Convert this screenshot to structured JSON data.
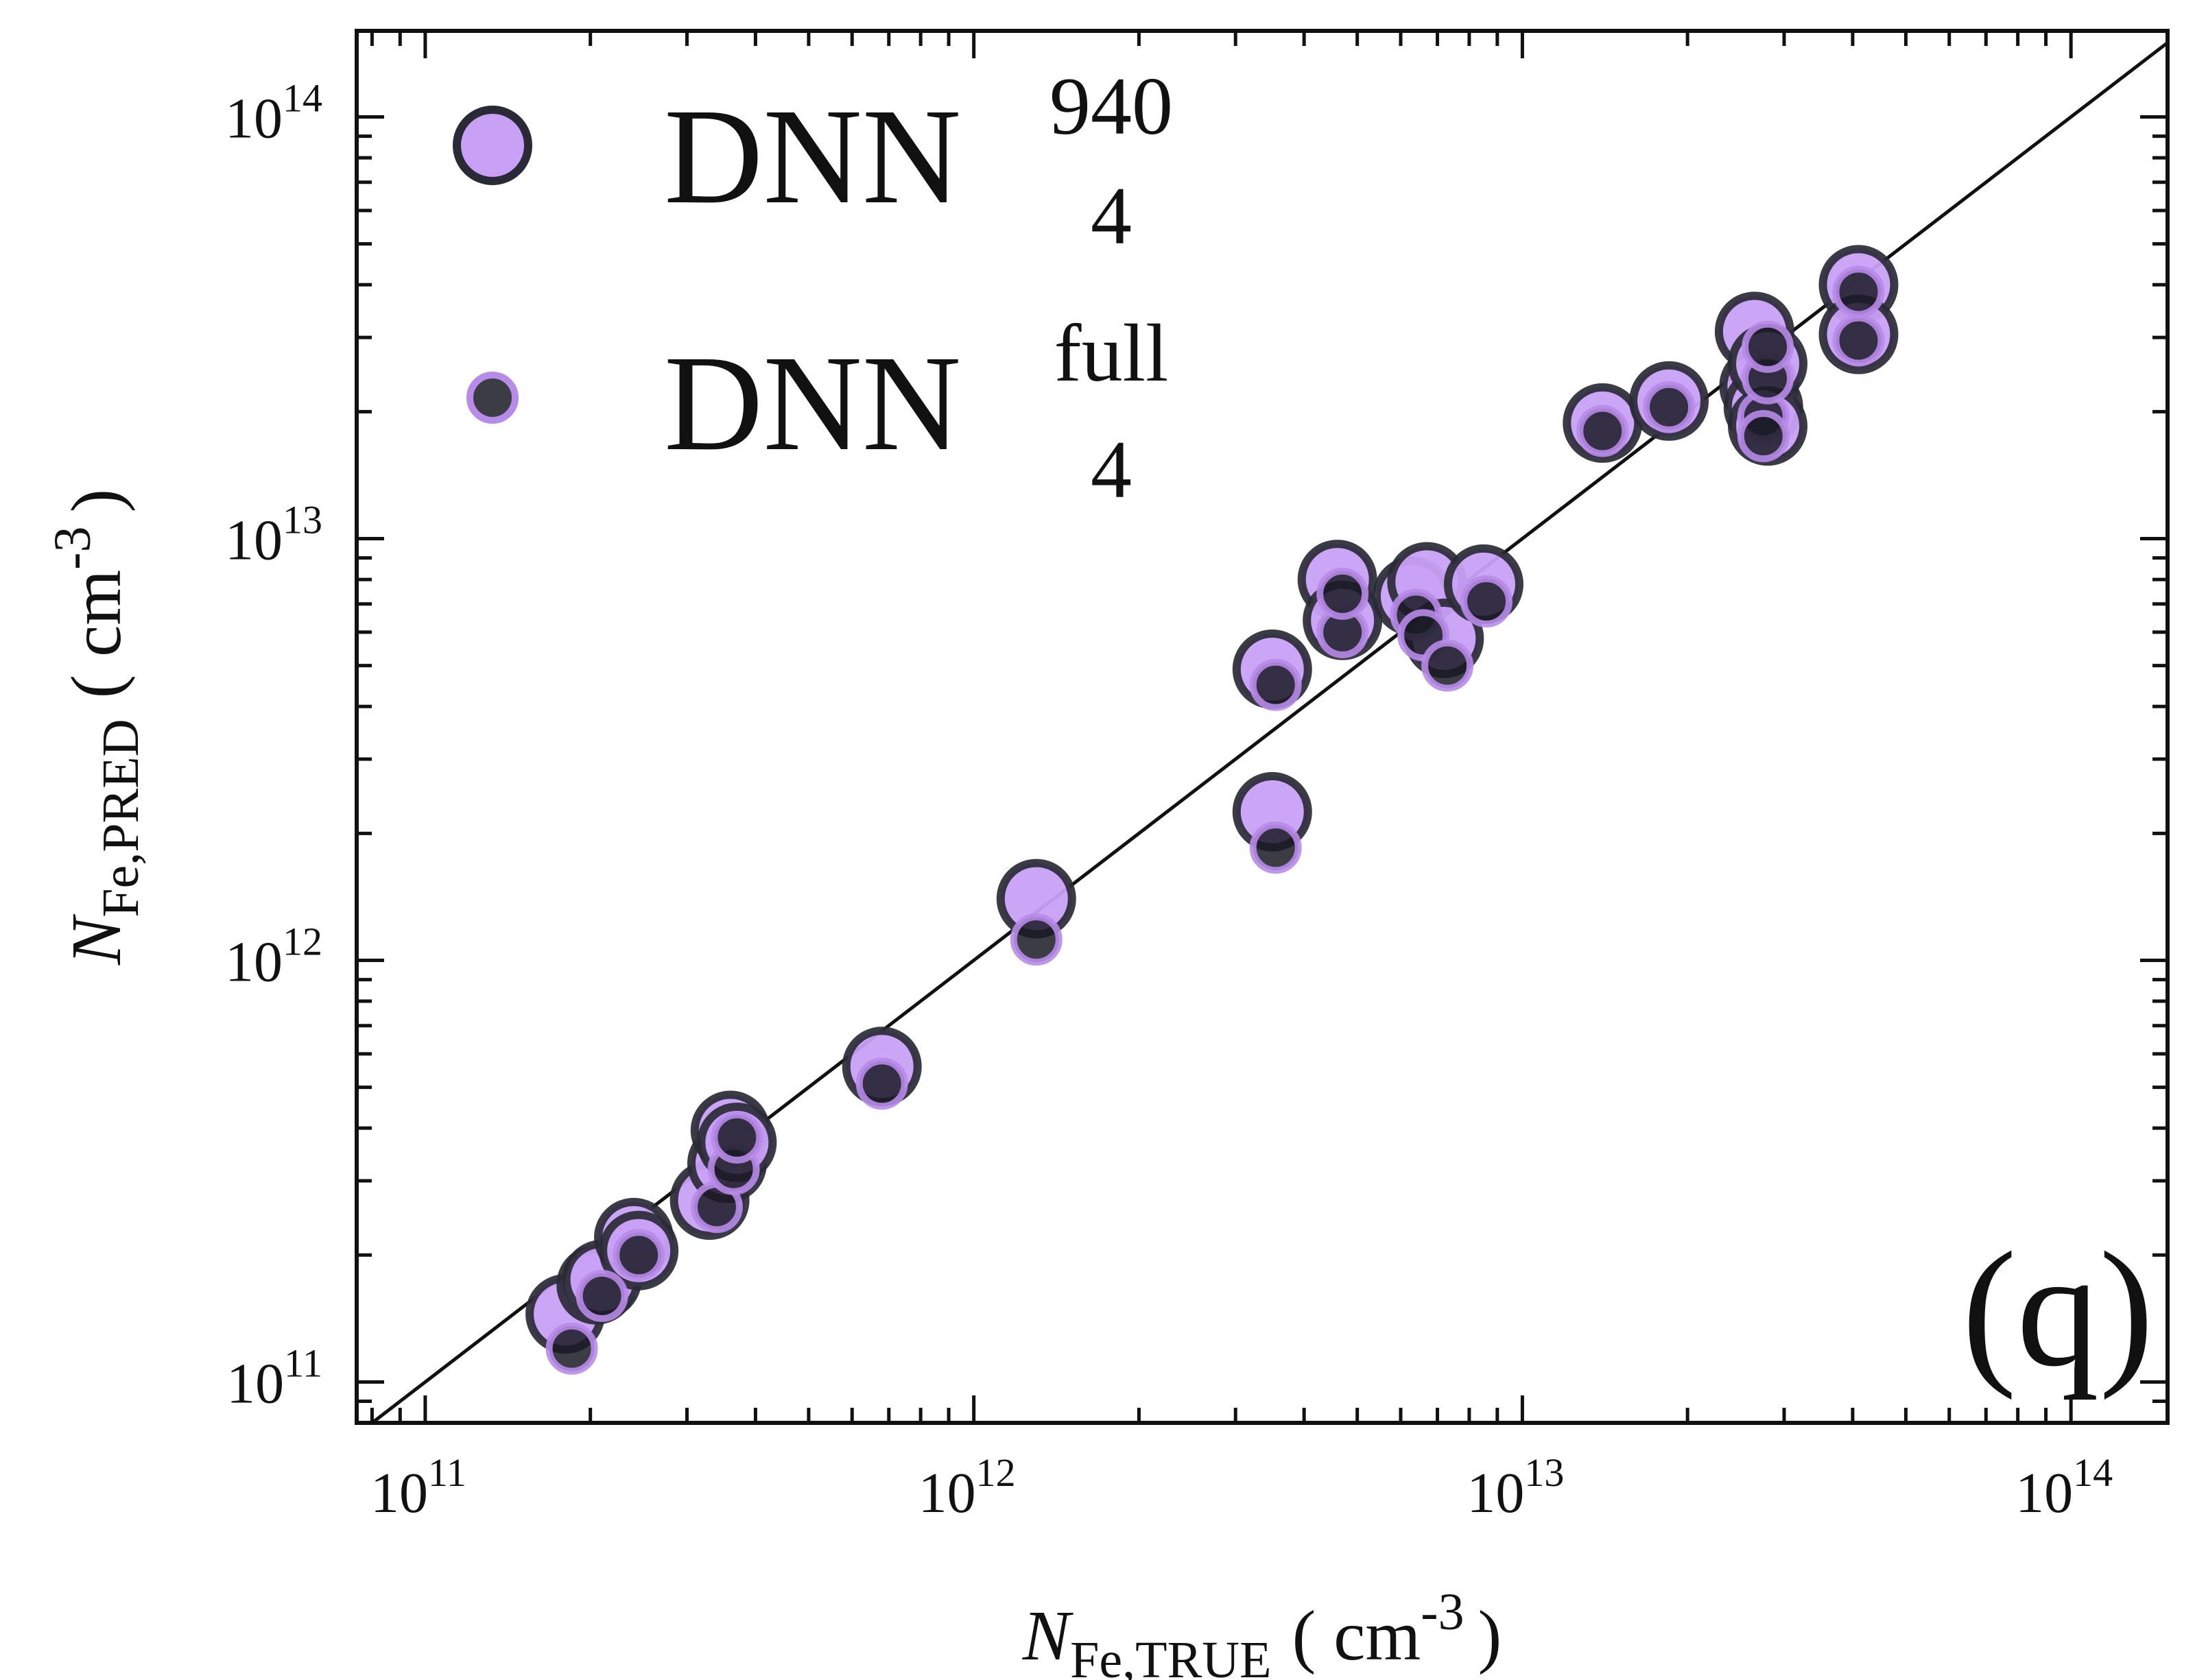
{
  "chart_data": {
    "type": "scatter",
    "panel_label": "(q)",
    "xlabel": {
      "symbol": "N",
      "subscript": "Fe,TRUE",
      "unit": "( cm",
      "unit_exp": "-3",
      "unit_close": ")"
    },
    "ylabel": {
      "symbol": "N",
      "subscript": "Fe,PRED",
      "unit": "( cm",
      "unit_exp": "-3",
      "unit_close": ")"
    },
    "xscale": "log",
    "yscale": "log",
    "xlim": [
      75000000000.0,
      150000000000000.0
    ],
    "ylim": [
      80000000000.0,
      160000000000000.0
    ],
    "major_ticks": [
      {
        "value": 100000000000.0,
        "base": "10",
        "exp": "11"
      },
      {
        "value": 1000000000000.0,
        "base": "10",
        "exp": "12"
      },
      {
        "value": 10000000000000.0,
        "base": "10",
        "exp": "13"
      },
      {
        "value": 100000000000000.0,
        "base": "10",
        "exp": "14"
      }
    ],
    "reference_line": "y = x",
    "legend_position": "top-left",
    "series": [
      {
        "name": "DNN",
        "superscript": "940",
        "subscript": "4",
        "fill": "#c8a0f5",
        "edge": "#2a2a36",
        "points": [
          [
            180000000000.0,
            145000000000.0
          ],
          [
            205000000000.0,
            170000000000.0
          ],
          [
            210000000000.0,
            175000000000.0
          ],
          [
            240000000000.0,
            220000000000.0
          ],
          [
            245000000000.0,
            205000000000.0
          ],
          [
            330000000000.0,
            270000000000.0
          ],
          [
            355000000000.0,
            330000000000.0
          ],
          [
            360000000000.0,
            395000000000.0
          ],
          [
            370000000000.0,
            370000000000.0
          ],
          [
            680000000000.0,
            560000000000.0
          ],
          [
            1300000000000.0,
            1400000000000.0
          ],
          [
            3500000000000.0,
            2250000000000.0
          ],
          [
            3500000000000.0,
            4900000000000.0
          ],
          [
            4600000000000.0,
            8000000000000.0
          ],
          [
            4700000000000.0,
            6400000000000.0
          ],
          [
            6300000000000.0,
            7300000000000.0
          ],
          [
            6700000000000.0,
            7900000000000.0
          ],
          [
            7200000000000.0,
            5800000000000.0
          ],
          [
            8500000000000.0,
            7800000000000.0
          ],
          [
            14000000000000.0,
            18800000000000.0
          ],
          [
            18500000000000.0,
            21200000000000.0
          ],
          [
            26500000000000.0,
            31000000000000.0
          ],
          [
            27000000000000.0,
            23000000000000.0
          ],
          [
            27500000000000.0,
            20500000000000.0
          ],
          [
            28000000000000.0,
            26000000000000.0
          ],
          [
            28000000000000.0,
            18500000000000.0
          ],
          [
            41000000000000.0,
            40000000000000.0
          ],
          [
            41000000000000.0,
            30500000000000.0
          ]
        ]
      },
      {
        "name": "DNN",
        "superscript": "full",
        "subscript": "4",
        "fill": "#1a1a24",
        "edge": "#b78be8",
        "points": [
          [
            185000000000.0,
            120000000000.0
          ],
          [
            210000000000.0,
            160000000000.0
          ],
          [
            245000000000.0,
            200000000000.0
          ],
          [
            340000000000.0,
            260000000000.0
          ],
          [
            365000000000.0,
            320000000000.0
          ],
          [
            370000000000.0,
            380000000000.0
          ],
          [
            680000000000.0,
            510000000000.0
          ],
          [
            1300000000000.0,
            1120000000000.0
          ],
          [
            3550000000000.0,
            1850000000000.0
          ],
          [
            3550000000000.0,
            4500000000000.0
          ],
          [
            4700000000000.0,
            6000000000000.0
          ],
          [
            4700000000000.0,
            7400000000000.0
          ],
          [
            6400000000000.0,
            6600000000000.0
          ],
          [
            6600000000000.0,
            5900000000000.0
          ],
          [
            7300000000000.0,
            5000000000000.0
          ],
          [
            8600000000000.0,
            7100000000000.0
          ],
          [
            14000000000000.0,
            18000000000000.0
          ],
          [
            18500000000000.0,
            20500000000000.0
          ],
          [
            27500000000000.0,
            19500000000000.0
          ],
          [
            27500000000000.0,
            17500000000000.0
          ],
          [
            28000000000000.0,
            24000000000000.0
          ],
          [
            28000000000000.0,
            28500000000000.0
          ],
          [
            41000000000000.0,
            38500000000000.0
          ],
          [
            41000000000000.0,
            29500000000000.0
          ]
        ]
      }
    ]
  }
}
